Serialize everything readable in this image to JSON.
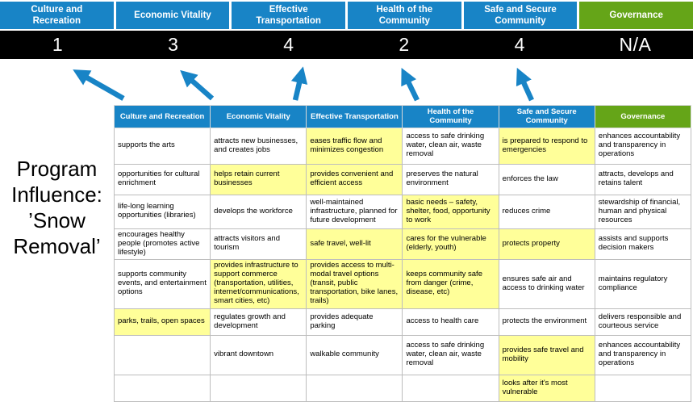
{
  "title": {
    "full": "Program Influence: ’Snow Removal’",
    "lines": [
      "Program",
      "Influence:",
      "’Snow",
      "Removal’"
    ]
  },
  "colors": {
    "blue": "#1884C6",
    "green": "#65A518",
    "highlight": "#FFFF99",
    "score_bar_bg": "#000000"
  },
  "pillars": [
    {
      "label": "Culture and Recreation",
      "score": "1",
      "theme": "blue"
    },
    {
      "label": "Economic Vitality",
      "score": "3",
      "theme": "blue"
    },
    {
      "label": "Effective Transportation",
      "score": "4",
      "theme": "blue"
    },
    {
      "label": "Health of the Community",
      "score": "2",
      "theme": "blue"
    },
    {
      "label": "Safe and Secure Community",
      "score": "4",
      "theme": "blue"
    },
    {
      "label": "Governance",
      "score": "N/A",
      "theme": "green"
    }
  ],
  "matrix": {
    "headers": [
      {
        "label": "Culture and Recreation",
        "theme": "blue"
      },
      {
        "label": "Economic Vitality",
        "theme": "blue"
      },
      {
        "label": "Effective Transportation",
        "theme": "blue"
      },
      {
        "label": "Health of the Community",
        "theme": "blue"
      },
      {
        "label": "Safe and Secure Community",
        "theme": "blue"
      },
      {
        "label": "Governance",
        "theme": "green"
      }
    ],
    "rows": [
      [
        {
          "text": "supports the arts",
          "highlight": false
        },
        {
          "text": "attracts new businesses, and creates jobs",
          "highlight": false
        },
        {
          "text": "eases traffic flow and minimizes congestion",
          "highlight": true
        },
        {
          "text": "access to safe drinking water, clean air, waste removal",
          "highlight": false
        },
        {
          "text": "is prepared to respond to emergencies",
          "highlight": true
        },
        {
          "text": "enhances accountability and transparency in operations",
          "highlight": false
        }
      ],
      [
        {
          "text": "opportunities for cultural enrichment",
          "highlight": false
        },
        {
          "text": "helps retain current businesses",
          "highlight": true
        },
        {
          "text": "provides convenient and efficient access",
          "highlight": true
        },
        {
          "text": "preserves the natural environment",
          "highlight": false
        },
        {
          "text": "enforces the law",
          "highlight": false
        },
        {
          "text": "attracts, develops and retains talent",
          "highlight": false
        }
      ],
      [
        {
          "text": "life-long learning opportunities (libraries)",
          "highlight": false
        },
        {
          "text": "develops the workforce",
          "highlight": false
        },
        {
          "text": "well-maintained infrastructure, planned for future development",
          "highlight": false
        },
        {
          "text": "basic needs – safety, shelter, food, opportunity to work",
          "highlight": true
        },
        {
          "text": "reduces crime",
          "highlight": false
        },
        {
          "text": "stewardship of financial, human and physical resources",
          "highlight": false
        }
      ],
      [
        {
          "text": "encourages healthy people (promotes active lifestyle)",
          "highlight": false
        },
        {
          "text": "attracts visitors and tourism",
          "highlight": false
        },
        {
          "text": "safe travel, well-lit",
          "highlight": true
        },
        {
          "text": "cares for the vulnerable (elderly, youth)",
          "highlight": true
        },
        {
          "text": "protects property",
          "highlight": true
        },
        {
          "text": "assists and supports decision makers",
          "highlight": false
        }
      ],
      [
        {
          "text": "supports community events, and entertainment options",
          "highlight": false
        },
        {
          "text": "provides infrastructure to support commerce (transportation, utilities, internet/communications, smart cities, etc)",
          "highlight": true
        },
        {
          "text": "provides access to multi-modal travel options (transit, public transportation, bike lanes, trails)",
          "highlight": true
        },
        {
          "text": "keeps community safe from danger (crime, disease, etc)",
          "highlight": true
        },
        {
          "text": "ensures safe air and access to drinking water",
          "highlight": false
        },
        {
          "text": "maintains regulatory compliance",
          "highlight": false
        }
      ],
      [
        {
          "text": "parks, trails, open spaces",
          "highlight": true
        },
        {
          "text": "regulates growth and development",
          "highlight": false
        },
        {
          "text": "provides adequate parking",
          "highlight": false
        },
        {
          "text": "access to health care",
          "highlight": false
        },
        {
          "text": "protects the environment",
          "highlight": false
        },
        {
          "text": "delivers responsible and courteous service",
          "highlight": false
        }
      ],
      [
        {
          "text": "",
          "highlight": false
        },
        {
          "text": "vibrant downtown",
          "highlight": false
        },
        {
          "text": "walkable community",
          "highlight": false
        },
        {
          "text": "access to safe drinking water, clean air, waste removal",
          "highlight": false
        },
        {
          "text": "provides safe travel and mobility",
          "highlight": true
        },
        {
          "text": "enhances accountability and transparency in operations",
          "highlight": false
        }
      ],
      [
        {
          "text": "",
          "highlight": false
        },
        {
          "text": "",
          "highlight": false
        },
        {
          "text": "",
          "highlight": false
        },
        {
          "text": "",
          "highlight": false
        },
        {
          "text": "looks after it's most vulnerable",
          "highlight": true
        },
        {
          "text": "",
          "highlight": false
        }
      ]
    ]
  }
}
